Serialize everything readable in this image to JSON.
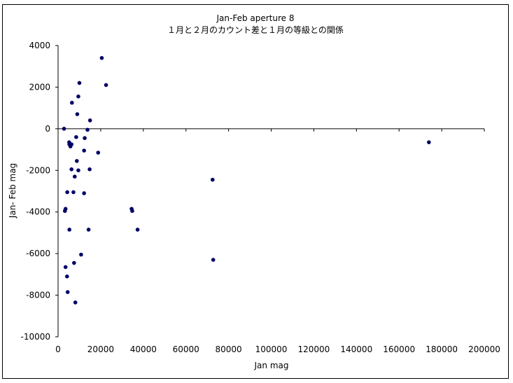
{
  "chart_data": {
    "type": "scatter",
    "title": "Jan-Feb aperture 8",
    "subtitle": "１月と２月のカウント差と１月の等級との関係",
    "xlabel": "Jan mag",
    "ylabel": "Jan- Feb mag",
    "xlim": [
      0,
      200000
    ],
    "ylim": [
      -10000,
      4000
    ],
    "x_ticks": [
      0,
      20000,
      40000,
      60000,
      80000,
      100000,
      120000,
      140000,
      160000,
      180000,
      200000
    ],
    "y_ticks": [
      -10000,
      -8000,
      -6000,
      -4000,
      -2000,
      0,
      2000,
      4000
    ],
    "x_tick_labels": [
      "0",
      "20000",
      "40000",
      "60000",
      "80000",
      "100000",
      "120000",
      "140000",
      "160000",
      "180000",
      "200000"
    ],
    "y_tick_labels": [
      "-10000",
      "-8000",
      "-6000",
      "-4000",
      "-2000",
      "0",
      "2000",
      "4000"
    ],
    "grid": false,
    "legend": "none",
    "marker_color": "#000066",
    "points": [
      {
        "x": 20500,
        "y": 3400
      },
      {
        "x": 22500,
        "y": 2100
      },
      {
        "x": 10000,
        "y": 2200
      },
      {
        "x": 9500,
        "y": 1550
      },
      {
        "x": 6500,
        "y": 1250
      },
      {
        "x": 9000,
        "y": 700
      },
      {
        "x": 15000,
        "y": 400
      },
      {
        "x": 2800,
        "y": 0
      },
      {
        "x": 13800,
        "y": -50
      },
      {
        "x": 8500,
        "y": -400
      },
      {
        "x": 12500,
        "y": -450
      },
      {
        "x": 5200,
        "y": -650
      },
      {
        "x": 5300,
        "y": -750
      },
      {
        "x": 6300,
        "y": -750
      },
      {
        "x": 5800,
        "y": -850
      },
      {
        "x": 12200,
        "y": -1050
      },
      {
        "x": 18800,
        "y": -1150
      },
      {
        "x": 8800,
        "y": -1550
      },
      {
        "x": 6300,
        "y": -1950
      },
      {
        "x": 9500,
        "y": -2000
      },
      {
        "x": 14800,
        "y": -1950
      },
      {
        "x": 7800,
        "y": -2300
      },
      {
        "x": 72500,
        "y": -2450
      },
      {
        "x": 174000,
        "y": -650
      },
      {
        "x": 4300,
        "y": -3050
      },
      {
        "x": 7200,
        "y": -3050
      },
      {
        "x": 12200,
        "y": -3100
      },
      {
        "x": 3500,
        "y": -3850
      },
      {
        "x": 3200,
        "y": -3950
      },
      {
        "x": 34500,
        "y": -3850
      },
      {
        "x": 34800,
        "y": -3950
      },
      {
        "x": 5300,
        "y": -4850
      },
      {
        "x": 14300,
        "y": -4850
      },
      {
        "x": 37300,
        "y": -4850
      },
      {
        "x": 10800,
        "y": -6050
      },
      {
        "x": 72800,
        "y": -6300
      },
      {
        "x": 7500,
        "y": -6450
      },
      {
        "x": 3500,
        "y": -6650
      },
      {
        "x": 4200,
        "y": -7100
      },
      {
        "x": 4500,
        "y": -7850
      },
      {
        "x": 8100,
        "y": -8350
      }
    ]
  }
}
